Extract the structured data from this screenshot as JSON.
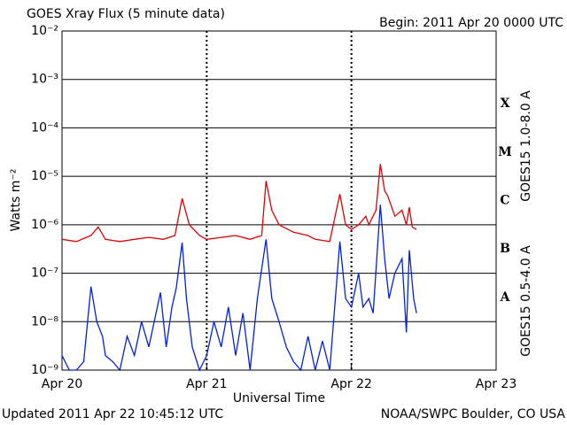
{
  "chart_data": {
    "type": "line",
    "title": "GOES Xray Flux (5 minute data)",
    "subtitle": "Begin:  2011 Apr 20 0000 UTC",
    "y_label": "Watts m⁻²",
    "x_label": "Universal Time",
    "footer_left": "Updated 2011 Apr 22 10:45:12 UTC",
    "footer_right": "NOAA/SWPC Boulder, CO USA",
    "log_y": true,
    "grid": true,
    "xlim": [
      0,
      3
    ],
    "xticks": [
      {
        "value": 0,
        "label": "Apr 20"
      },
      {
        "value": 1,
        "label": "Apr 21"
      },
      {
        "value": 2,
        "label": "Apr 22"
      },
      {
        "value": 3,
        "label": "Apr 23"
      }
    ],
    "ylim": [
      1e-09,
      0.01
    ],
    "yticks": [
      {
        "value": 1e-09,
        "label": "10⁻⁹"
      },
      {
        "value": 1e-08,
        "label": "10⁻⁸"
      },
      {
        "value": 1e-07,
        "label": "10⁻⁷"
      },
      {
        "value": 1e-06,
        "label": "10⁻⁶"
      },
      {
        "value": 1e-05,
        "label": "10⁻⁵"
      },
      {
        "value": 0.0001,
        "label": "10⁻⁴"
      },
      {
        "value": 0.001,
        "label": "10⁻³"
      },
      {
        "value": 0.01,
        "label": "10⁻²"
      }
    ],
    "flare_classes": [
      {
        "value": 0.0001,
        "label": "X"
      },
      {
        "value": 1e-05,
        "label": "M"
      },
      {
        "value": 1e-06,
        "label": "C"
      },
      {
        "value": 1e-07,
        "label": "B"
      },
      {
        "value": 1e-08,
        "label": "A"
      }
    ],
    "series": [
      {
        "name": "GOES15 1.0-8.0 A",
        "color": "#e00000",
        "x": [
          0.0,
          0.1,
          0.2,
          0.25,
          0.3,
          0.4,
          0.5,
          0.6,
          0.7,
          0.78,
          0.83,
          0.88,
          0.95,
          1.0,
          1.1,
          1.2,
          1.3,
          1.38,
          1.41,
          1.45,
          1.5,
          1.6,
          1.7,
          1.75,
          1.85,
          1.92,
          1.96,
          2.0,
          2.05,
          2.1,
          2.12,
          2.17,
          2.2,
          2.23,
          2.25,
          2.3,
          2.35,
          2.38,
          2.4,
          2.42,
          2.45
        ],
        "values": [
          5e-07,
          4.5e-07,
          6e-07,
          9e-07,
          5e-07,
          4.5e-07,
          5e-07,
          5.5e-07,
          5e-07,
          6e-07,
          3.5e-06,
          1e-06,
          6e-07,
          5e-07,
          5.5e-07,
          6e-07,
          5e-07,
          6e-07,
          8e-06,
          2e-06,
          1e-06,
          7e-07,
          6e-07,
          5e-07,
          4.5e-07,
          4.3e-06,
          1e-06,
          8e-07,
          1e-06,
          1.5e-06,
          1e-06,
          2e-06,
          1.8e-05,
          5e-06,
          4e-06,
          1.5e-06,
          2e-06,
          1e-06,
          2.3e-06,
          9e-07,
          8e-07
        ]
      },
      {
        "name": "GOES15 0.5-4.0 A",
        "color": "#0020e0",
        "x": [
          0.0,
          0.05,
          0.1,
          0.15,
          0.2,
          0.24,
          0.28,
          0.3,
          0.35,
          0.4,
          0.45,
          0.5,
          0.55,
          0.6,
          0.68,
          0.72,
          0.76,
          0.79,
          0.83,
          0.86,
          0.9,
          0.95,
          1.0,
          1.05,
          1.1,
          1.15,
          1.2,
          1.25,
          1.3,
          1.35,
          1.41,
          1.45,
          1.5,
          1.55,
          1.6,
          1.65,
          1.7,
          1.75,
          1.8,
          1.85,
          1.92,
          1.96,
          2.0,
          2.05,
          2.08,
          2.12,
          2.15,
          2.2,
          2.23,
          2.26,
          2.3,
          2.35,
          2.38,
          2.4,
          2.43,
          2.45
        ],
        "values": [
          2e-09,
          1e-09,
          1e-09,
          1.5e-09,
          5.3e-08,
          1e-08,
          5e-09,
          2e-09,
          1.5e-09,
          1e-09,
          5e-09,
          2e-09,
          1e-08,
          3e-09,
          4e-08,
          3e-09,
          2e-08,
          5e-08,
          4.3e-07,
          3e-08,
          3e-09,
          1e-09,
          2e-09,
          1e-08,
          3e-09,
          2e-08,
          2e-09,
          1.5e-08,
          1e-09,
          3e-08,
          5e-07,
          3e-08,
          1e-08,
          3e-09,
          1.5e-09,
          1e-09,
          5e-09,
          1e-09,
          4e-09,
          1e-09,
          4.5e-07,
          3e-08,
          2e-08,
          1e-07,
          2e-08,
          3e-08,
          1.5e-08,
          2.6e-06,
          2e-07,
          3e-08,
          1e-07,
          2e-07,
          6e-09,
          3e-07,
          3e-08,
          1.5e-08
        ]
      }
    ]
  }
}
